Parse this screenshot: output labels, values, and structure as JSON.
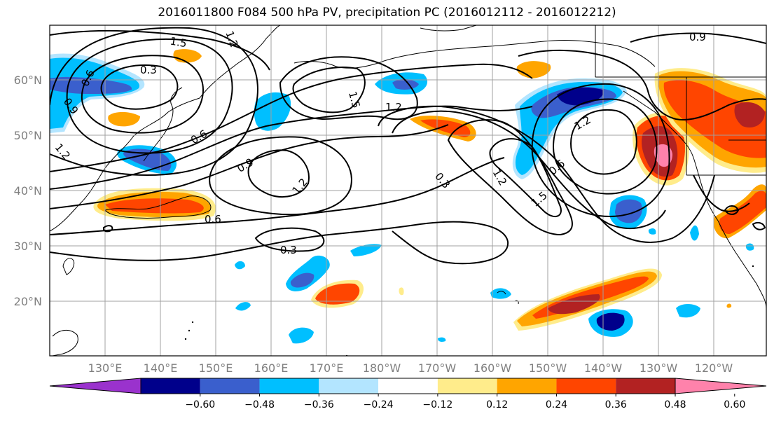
{
  "title": "2016011800 F084 500 hPa PV, precipitation PC (2016012112 - 2016012212)",
  "lat_labels": [
    "60°N",
    "50°N",
    "40°N",
    "30°N",
    "20°N"
  ],
  "lon_labels": [
    "130°E",
    "140°E",
    "150°E",
    "160°E",
    "170°E",
    "180°W",
    "170°W",
    "160°W",
    "150°W",
    "140°W",
    "130°W",
    "120°W"
  ],
  "contour_labels": [
    "1.5",
    "1.2",
    "0.9",
    "0.3",
    "0.6",
    "0.9",
    "0.6",
    "1.2",
    "1.5",
    "1.2",
    "0.9",
    "1.2",
    "0.6",
    "0.3",
    "1.2",
    "1.5",
    "0.6",
    "1.2",
    "0.3",
    "0.6",
    "0.3"
  ],
  "colorbar": {
    "colors": [
      "#9a32cd",
      "#00008b",
      "#3a5fcd",
      "#00bfff",
      "#b3e5ff",
      "#ffffff",
      "#ffec8b",
      "#ffa500",
      "#ff4500",
      "#b22222",
      "#ff82ab"
    ],
    "tick_labels": [
      "−0.60",
      "−0.48",
      "−0.36",
      "−0.24",
      "−0.12",
      "0.12",
      "0.24",
      "0.36",
      "0.48",
      "0.60"
    ]
  }
}
